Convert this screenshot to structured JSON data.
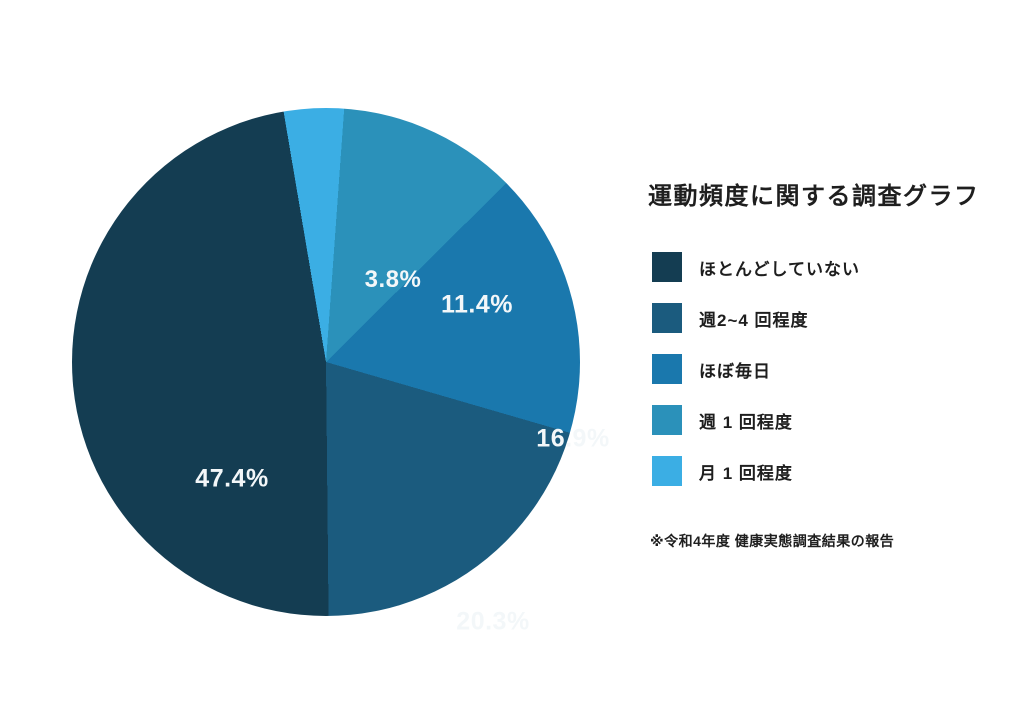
{
  "chart_data": {
    "type": "pie",
    "title": "運動頻度に関する調査グラフ",
    "footnote": "※令和4年度 健康実態調査結果の報告",
    "legend_position": "right",
    "start_angle_deg": 4.1,
    "draw_order": [
      3,
      2,
      1,
      0,
      4
    ],
    "slices": [
      {
        "label": "ほとんどしていない",
        "value": 47.4,
        "display": "47.4%",
        "color": "#143D52"
      },
      {
        "label": "週2~4 回程度",
        "value": 20.3,
        "display": "20.3%",
        "color": "#1B5B7E"
      },
      {
        "label": "ほぼ毎日",
        "value": 16.9,
        "display": "16.9%",
        "color": "#1A78AD"
      },
      {
        "label": "週 1 回程度",
        "value": 11.4,
        "display": "11.4%",
        "color": "#2B91BA"
      },
      {
        "label": "月 1 回程度",
        "value": 3.8,
        "display": "3.8%",
        "color": "#3BAEE4"
      }
    ]
  }
}
